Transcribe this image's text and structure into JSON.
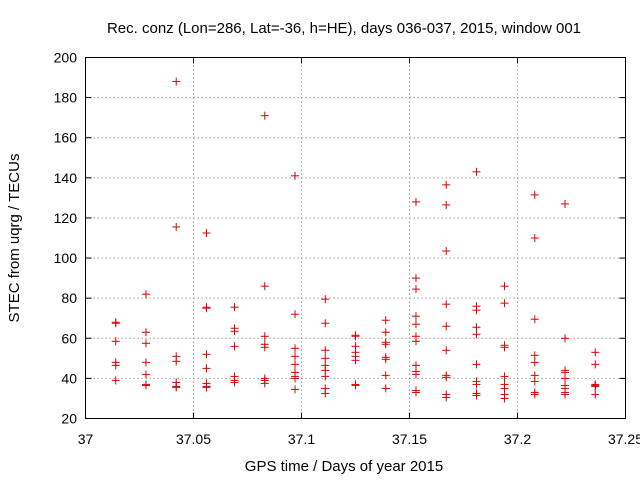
{
  "chart_data": {
    "type": "scatter",
    "title": "Rec. conz (Lon=286, Lat=-36, h=HE), days 036-037, 2015, window 001",
    "xlabel": "GPS time / Days of year 2015",
    "ylabel": "STEC from uqrg / TECUs",
    "xlim": [
      37,
      37.25
    ],
    "ylim": [
      20,
      200
    ],
    "grid": true,
    "marker": "+",
    "color": "#dd0000",
    "x_ticks": [
      37,
      37.05,
      37.1,
      37.15,
      37.2,
      37.25
    ],
    "x_tick_labels": [
      "37",
      "37.05",
      "37.1",
      "37.15",
      "37.2",
      "37.25"
    ],
    "y_ticks": [
      20,
      40,
      60,
      80,
      100,
      120,
      140,
      160,
      180,
      200
    ],
    "y_tick_labels": [
      "20",
      "40",
      "60",
      "80",
      "100",
      "120",
      "140",
      "160",
      "180",
      "200"
    ],
    "series": [
      {
        "name": "STEC",
        "points": [
          [
            37.014,
            68
          ],
          [
            37.014,
            67.5
          ],
          [
            37.014,
            58.5
          ],
          [
            37.014,
            48
          ],
          [
            37.014,
            46.5
          ],
          [
            37.014,
            39
          ],
          [
            37.028,
            82
          ],
          [
            37.028,
            63
          ],
          [
            37.028,
            57.5
          ],
          [
            37.028,
            48
          ],
          [
            37.028,
            42
          ],
          [
            37.028,
            37
          ],
          [
            37.028,
            36.5
          ],
          [
            37.042,
            188
          ],
          [
            37.042,
            115.5
          ],
          [
            37.042,
            51
          ],
          [
            37.042,
            48.5
          ],
          [
            37.042,
            38
          ],
          [
            37.042,
            36
          ],
          [
            37.042,
            35.5
          ],
          [
            37.056,
            112.5
          ],
          [
            37.056,
            75.5
          ],
          [
            37.056,
            75
          ],
          [
            37.056,
            52
          ],
          [
            37.056,
            45
          ],
          [
            37.056,
            37.5
          ],
          [
            37.056,
            36
          ],
          [
            37.056,
            35.5
          ],
          [
            37.069,
            75.5
          ],
          [
            37.069,
            65
          ],
          [
            37.069,
            63.5
          ],
          [
            37.069,
            56
          ],
          [
            37.069,
            41
          ],
          [
            37.069,
            39
          ],
          [
            37.069,
            38
          ],
          [
            37.083,
            171
          ],
          [
            37.083,
            86
          ],
          [
            37.083,
            61
          ],
          [
            37.083,
            57
          ],
          [
            37.083,
            55.5
          ],
          [
            37.083,
            40
          ],
          [
            37.083,
            39
          ],
          [
            37.083,
            37.5
          ],
          [
            37.097,
            141
          ],
          [
            37.097,
            72
          ],
          [
            37.097,
            55
          ],
          [
            37.097,
            51
          ],
          [
            37.097,
            47
          ],
          [
            37.097,
            43
          ],
          [
            37.097,
            41
          ],
          [
            37.097,
            40
          ],
          [
            37.097,
            34.5
          ],
          [
            37.111,
            79.5
          ],
          [
            37.111,
            67.5
          ],
          [
            37.111,
            54
          ],
          [
            37.111,
            50
          ],
          [
            37.111,
            46.5
          ],
          [
            37.111,
            44
          ],
          [
            37.111,
            41
          ],
          [
            37.111,
            35
          ],
          [
            37.111,
            32.5
          ],
          [
            37.125,
            61.5
          ],
          [
            37.125,
            61
          ],
          [
            37.125,
            56
          ],
          [
            37.125,
            53
          ],
          [
            37.125,
            51
          ],
          [
            37.125,
            49
          ],
          [
            37.125,
            37
          ],
          [
            37.125,
            36.5
          ],
          [
            37.139,
            69
          ],
          [
            37.139,
            63
          ],
          [
            37.139,
            58
          ],
          [
            37.139,
            57
          ],
          [
            37.139,
            50.5
          ],
          [
            37.139,
            49.5
          ],
          [
            37.139,
            41.5
          ],
          [
            37.139,
            35
          ],
          [
            37.153,
            128
          ],
          [
            37.153,
            90
          ],
          [
            37.153,
            84.5
          ],
          [
            37.153,
            71
          ],
          [
            37.153,
            67
          ],
          [
            37.153,
            61
          ],
          [
            37.153,
            58.5
          ],
          [
            37.153,
            46.5
          ],
          [
            37.153,
            43.5
          ],
          [
            37.153,
            42
          ],
          [
            37.153,
            34
          ],
          [
            37.153,
            33
          ],
          [
            37.167,
            136.5
          ],
          [
            37.167,
            126.5
          ],
          [
            37.167,
            103.5
          ],
          [
            37.167,
            77
          ],
          [
            37.167,
            66
          ],
          [
            37.167,
            54
          ],
          [
            37.167,
            41.5
          ],
          [
            37.167,
            40.5
          ],
          [
            37.167,
            32
          ],
          [
            37.167,
            30.5
          ],
          [
            37.181,
            143
          ],
          [
            37.181,
            76
          ],
          [
            37.181,
            74
          ],
          [
            37.181,
            65.5
          ],
          [
            37.181,
            62
          ],
          [
            37.181,
            47
          ],
          [
            37.181,
            38.5
          ],
          [
            37.181,
            37
          ],
          [
            37.181,
            32.5
          ],
          [
            37.181,
            31.5
          ],
          [
            37.194,
            86
          ],
          [
            37.194,
            77.5
          ],
          [
            37.194,
            56.5
          ],
          [
            37.194,
            55.5
          ],
          [
            37.194,
            41
          ],
          [
            37.194,
            37
          ],
          [
            37.194,
            35
          ],
          [
            37.194,
            32
          ],
          [
            37.194,
            30
          ],
          [
            37.208,
            131.5
          ],
          [
            37.208,
            110
          ],
          [
            37.208,
            69.5
          ],
          [
            37.208,
            51.5
          ],
          [
            37.208,
            48
          ],
          [
            37.208,
            41.5
          ],
          [
            37.208,
            38.5
          ],
          [
            37.208,
            33
          ],
          [
            37.208,
            32
          ],
          [
            37.222,
            127
          ],
          [
            37.222,
            60
          ],
          [
            37.222,
            44
          ],
          [
            37.222,
            43
          ],
          [
            37.222,
            40
          ],
          [
            37.222,
            36.5
          ],
          [
            37.222,
            35
          ],
          [
            37.222,
            33
          ],
          [
            37.222,
            32
          ],
          [
            37.236,
            53
          ],
          [
            37.236,
            47
          ],
          [
            37.236,
            37
          ],
          [
            37.236,
            36.5
          ],
          [
            37.236,
            36
          ],
          [
            37.236,
            32
          ]
        ]
      }
    ]
  }
}
